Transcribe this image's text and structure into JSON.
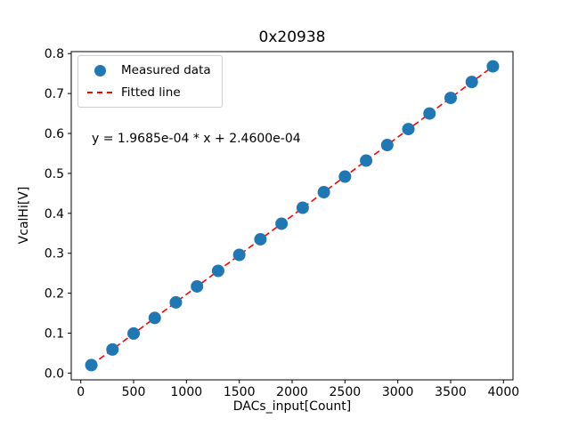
{
  "chart_data": {
    "type": "scatter",
    "title": "0x20938",
    "xlabel": "DACs_input[Count]",
    "ylabel": "VcalHi[V]",
    "xlim": [
      -90,
      4090
    ],
    "ylim": [
      -0.017,
      0.805
    ],
    "xticks": [
      0,
      500,
      1000,
      1500,
      2000,
      2500,
      3000,
      3500,
      4000
    ],
    "xtick_labels": [
      "0",
      "500",
      "1000",
      "1500",
      "2000",
      "2500",
      "3000",
      "3500",
      "4000"
    ],
    "yticks": [
      0.0,
      0.1,
      0.2,
      0.3,
      0.4,
      0.5,
      0.6,
      0.7,
      0.8
    ],
    "ytick_labels": [
      "0.0",
      "0.1",
      "0.2",
      "0.3",
      "0.4",
      "0.5",
      "0.6",
      "0.7",
      "0.8"
    ],
    "grid": false,
    "legend_position": "upper left",
    "annotation": {
      "text": "y = 1.9685e-04 * x + 2.4600e-04",
      "x": 200,
      "y": 0.59
    },
    "series": [
      {
        "name": "Measured data",
        "type": "scatter",
        "color": "#1f77b4",
        "x": [
          100,
          300,
          500,
          700,
          900,
          1100,
          1300,
          1500,
          1700,
          1900,
          2100,
          2300,
          2500,
          2700,
          2900,
          3100,
          3300,
          3500,
          3700,
          3900
        ],
        "y": [
          0.02,
          0.059,
          0.099,
          0.138,
          0.177,
          0.217,
          0.256,
          0.296,
          0.335,
          0.374,
          0.414,
          0.453,
          0.492,
          0.532,
          0.571,
          0.611,
          0.65,
          0.689,
          0.729,
          0.768
        ]
      },
      {
        "name": "Fitted line",
        "type": "line",
        "style": "dashed",
        "color": "#ff0000",
        "slope": 0.00019685,
        "intercept": 0.000246,
        "x_range": [
          100,
          3900
        ]
      }
    ]
  }
}
